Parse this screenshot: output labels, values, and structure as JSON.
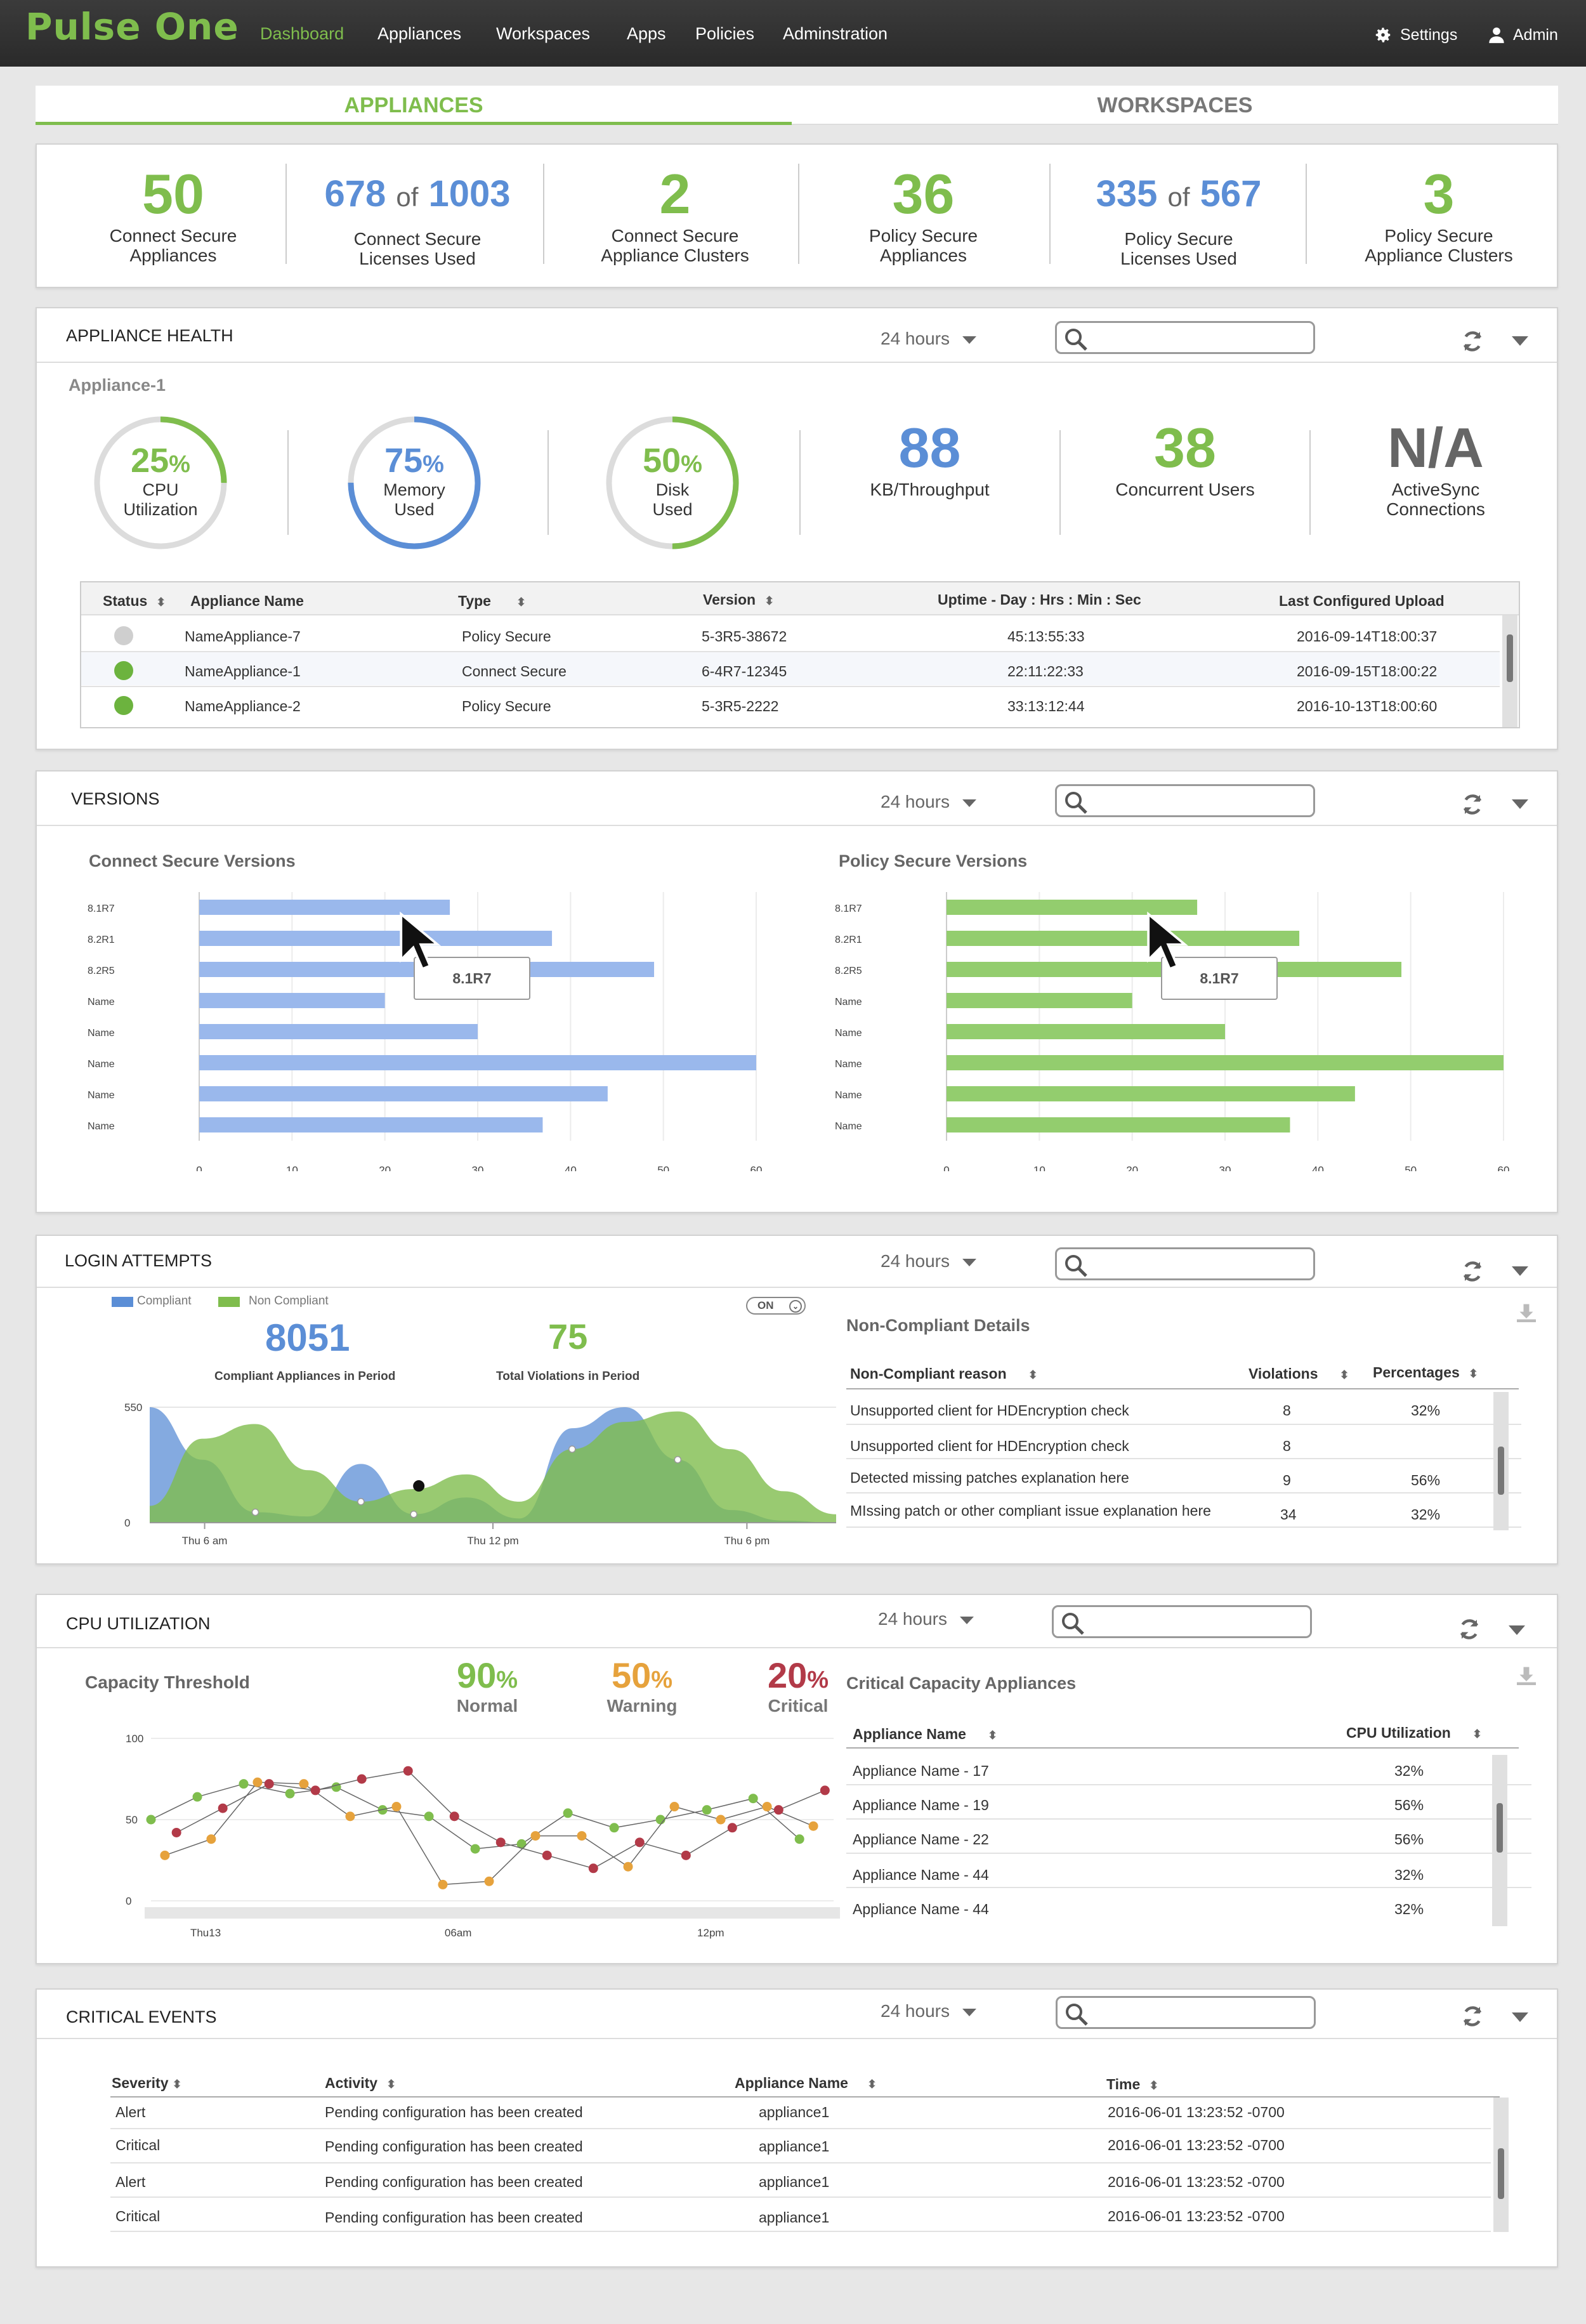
{
  "header": {
    "logo": "Pulse One",
    "nav": [
      "Dashboard",
      "Appliances",
      "Workspaces",
      "Apps",
      "Policies",
      "Adminstration"
    ],
    "settings": "Settings",
    "admin": "Admin"
  },
  "tabs": [
    "APPLIANCES",
    "WORKSPACES"
  ],
  "summary": [
    {
      "value": "50",
      "label1": "Connect Secure",
      "label2": "Appliances"
    },
    {
      "used": "678",
      "of": "of",
      "total": "1003",
      "label1": "Connect Secure",
      "label2": "Licenses Used"
    },
    {
      "value": "2",
      "label1": "Connect Secure",
      "label2": "Appliance Clusters"
    },
    {
      "value": "36",
      "label1": "Policy Secure",
      "label2": "Appliances"
    },
    {
      "used": "335",
      "of": "of",
      "total": "567",
      "label1": "Policy Secure",
      "label2": "Licenses Used"
    },
    {
      "value": "3",
      "label1": "Policy Secure",
      "label2": "Appliance Clusters"
    }
  ],
  "range": "24 hours",
  "health": {
    "title": "APPLIANCE HEALTH",
    "appliance": "Appliance-1",
    "gauges": [
      {
        "pct": "25",
        "fraction": 0.25,
        "sign": "%",
        "l1": "CPU",
        "l2": "Utilization",
        "color": "#7fbd4d"
      },
      {
        "pct": "75",
        "fraction": 0.75,
        "sign": "%",
        "l1": "Memory",
        "l2": "Used",
        "color": "#5b8ed6"
      },
      {
        "pct": "50",
        "fraction": 0.5,
        "sign": "%",
        "l1": "Disk",
        "l2": "Used",
        "color": "#7fbd4d"
      }
    ],
    "metrics": [
      {
        "value": "88",
        "label": "KB/Throughput",
        "color": "#5b8ed6"
      },
      {
        "value": "38",
        "label": "Concurrent Users",
        "color": "#7fbd4d"
      },
      {
        "value": "N/A",
        "label": "ActiveSync",
        "label2": "Connections",
        "color": "#666"
      }
    ],
    "columns": [
      "Status",
      "Appliance Name",
      "Type",
      "Version",
      "Uptime - Day : Hrs : Min : Sec",
      "Last Configured Upload"
    ],
    "rows": [
      {
        "status": "#cfcfcf",
        "name": "NameAppliance-7",
        "type": "Policy Secure",
        "version": "5-3R5-38672",
        "uptime": "45:13:55:33",
        "last": "2016-09-14T18:00:37"
      },
      {
        "status": "#6cb33e",
        "name": "NameAppliance-1",
        "type": "Connect Secure",
        "version": "6-4R7-12345",
        "uptime": "22:11:22:33",
        "last": "2016-09-15T18:00:22"
      },
      {
        "status": "#6cb33e",
        "name": "NameAppliance-2",
        "type": "Policy Secure",
        "version": "5-3R5-2222",
        "uptime": "33:13:12:44",
        "last": "2016-10-13T18:00:60"
      }
    ]
  },
  "versions": {
    "title": "VERSIONS",
    "cs_title": "Connect Secure Versions",
    "ps_title": "Policy Secure Versions",
    "tooltip": "8.1R7"
  },
  "login": {
    "title": "LOGIN ATTEMPTS",
    "legend_compliant": "Compliant",
    "legend_noncompliant": "Non Compliant",
    "toggle": "ON",
    "compliant_value": "8051",
    "compliant_label": "Compliant Appliances in Period",
    "violations_value": "75",
    "violations_label": "Total Violations in Period",
    "details_title": "Non-Compliant Details",
    "columns": [
      "Non-Compliant reason",
      "Violations",
      "Percentages"
    ],
    "rows": [
      {
        "reason": "Unsupported client for HDEncryption check",
        "violations": "8",
        "pct": "32%"
      },
      {
        "reason": "Unsupported client for HDEncryption check",
        "violations": "8",
        "pct": ""
      },
      {
        "reason": "Detected missing patches explanation here",
        "violations": "9",
        "pct": "56%"
      },
      {
        "reason": "MIssing patch or other compliant issue explanation here",
        "violations": "34",
        "pct": "32%"
      }
    ]
  },
  "cpu": {
    "title": "CPU UTILIZATION",
    "capacity_title": "Capacity Threshold",
    "thresholds": [
      {
        "value": "90",
        "sign": "%",
        "label": "Normal",
        "color": "#7fbd4d"
      },
      {
        "value": "50",
        "sign": "%",
        "label": "Warning",
        "color": "#e6a23c"
      },
      {
        "value": "20",
        "sign": "%",
        "label": "Critical",
        "color": "#b23a48"
      }
    ],
    "critical_title": "Critical Capacity Appliances",
    "columns": [
      "Appliance Name",
      "CPU Utilization"
    ],
    "rows": [
      {
        "name": "Appliance Name - 17",
        "cpu": "32%"
      },
      {
        "name": "Appliance Name - 19",
        "cpu": "56%"
      },
      {
        "name": "Appliance Name - 22",
        "cpu": "56%"
      },
      {
        "name": "Appliance Name - 44",
        "cpu": "32%"
      },
      {
        "name": "Appliance Name - 44",
        "cpu": "32%"
      }
    ]
  },
  "events": {
    "title": "CRITICAL EVENTS",
    "columns": [
      "Severity",
      "Activity",
      "Appliance Name",
      "Time"
    ],
    "rows": [
      {
        "severity": "Alert",
        "activity": "Pending configuration has been created",
        "appliance": "appliance1",
        "time": "2016-06-01 13:23:52 -0700"
      },
      {
        "severity": "Critical",
        "activity": "Pending configuration has been created",
        "appliance": "appliance1",
        "time": "2016-06-01 13:23:52 -0700"
      },
      {
        "severity": "Alert",
        "activity": "Pending configuration has been created",
        "appliance": "appliance1",
        "time": "2016-06-01 13:23:52 -0700"
      },
      {
        "severity": "Critical",
        "activity": "Pending configuration has been created",
        "appliance": "appliance1",
        "time": "2016-06-01 13:23:52 -0700"
      }
    ]
  },
  "colors": {
    "green": "#7fbd4d",
    "blue": "#5b8ed6",
    "barBlue": "#9ab8ec",
    "barGreen": "#93cd6e",
    "warning": "#e6a23c",
    "critical": "#b23a48"
  },
  "chart_data": [
    {
      "type": "bar",
      "title": "Connect Secure Versions",
      "orientation": "horizontal",
      "categories": [
        "8.1R7",
        "8.2R1",
        "8.2R5",
        "Name",
        "Name",
        "Name",
        "Name",
        "Name"
      ],
      "values": [
        27,
        38,
        49,
        20,
        30,
        60,
        44,
        37
      ],
      "xlim": [
        0,
        60
      ],
      "xticks": [
        0,
        10,
        20,
        30,
        40,
        50,
        60
      ],
      "grid": true
    },
    {
      "type": "bar",
      "title": "Policy Secure Versions",
      "orientation": "horizontal",
      "categories": [
        "8.1R7",
        "8.2R1",
        "8.2R5",
        "Name",
        "Name",
        "Name",
        "Name",
        "Name"
      ],
      "values": [
        27,
        38,
        49,
        20,
        30,
        60,
        44,
        37
      ],
      "xlim": [
        0,
        60
      ],
      "xticks": [
        0,
        10,
        20,
        30,
        40,
        50,
        60
      ],
      "grid": true
    },
    {
      "type": "area",
      "yticks": [
        0,
        550
      ],
      "xticks": [
        "Thu 6 am",
        "Thu 12 pm",
        "Thu 6 pm"
      ],
      "legend": "top-left",
      "series": [
        {
          "name": "Compliant",
          "color": "#5b8ed6",
          "values": [
            550,
            300,
            50,
            30,
            280,
            40,
            120,
            20,
            450,
            550,
            300,
            60,
            10,
            0
          ]
        },
        {
          "name": "Non Compliant",
          "color": "#7fbd4d",
          "values": [
            80,
            400,
            470,
            250,
            100,
            160,
            230,
            100,
            350,
            480,
            530,
            350,
            150,
            40
          ]
        }
      ]
    },
    {
      "type": "line",
      "yticks": [
        0,
        50,
        100
      ],
      "xticks": [
        "Thu13",
        "06am",
        "12pm"
      ],
      "series": [
        {
          "color": "#7fbd4d",
          "values": [
            50,
            64,
            72,
            66,
            70,
            56,
            52,
            32,
            35,
            54,
            45,
            50,
            56,
            63,
            38
          ]
        },
        {
          "color": "#e6a23c",
          "values": [
            28,
            38,
            73,
            72,
            52,
            58,
            10,
            12,
            40,
            40,
            21,
            58,
            50,
            58,
            46
          ]
        },
        {
          "color": "#b23a48",
          "values": [
            42,
            57,
            72,
            68,
            75,
            80,
            52,
            36,
            28,
            20,
            36,
            28,
            45,
            56,
            68
          ]
        }
      ]
    }
  ]
}
